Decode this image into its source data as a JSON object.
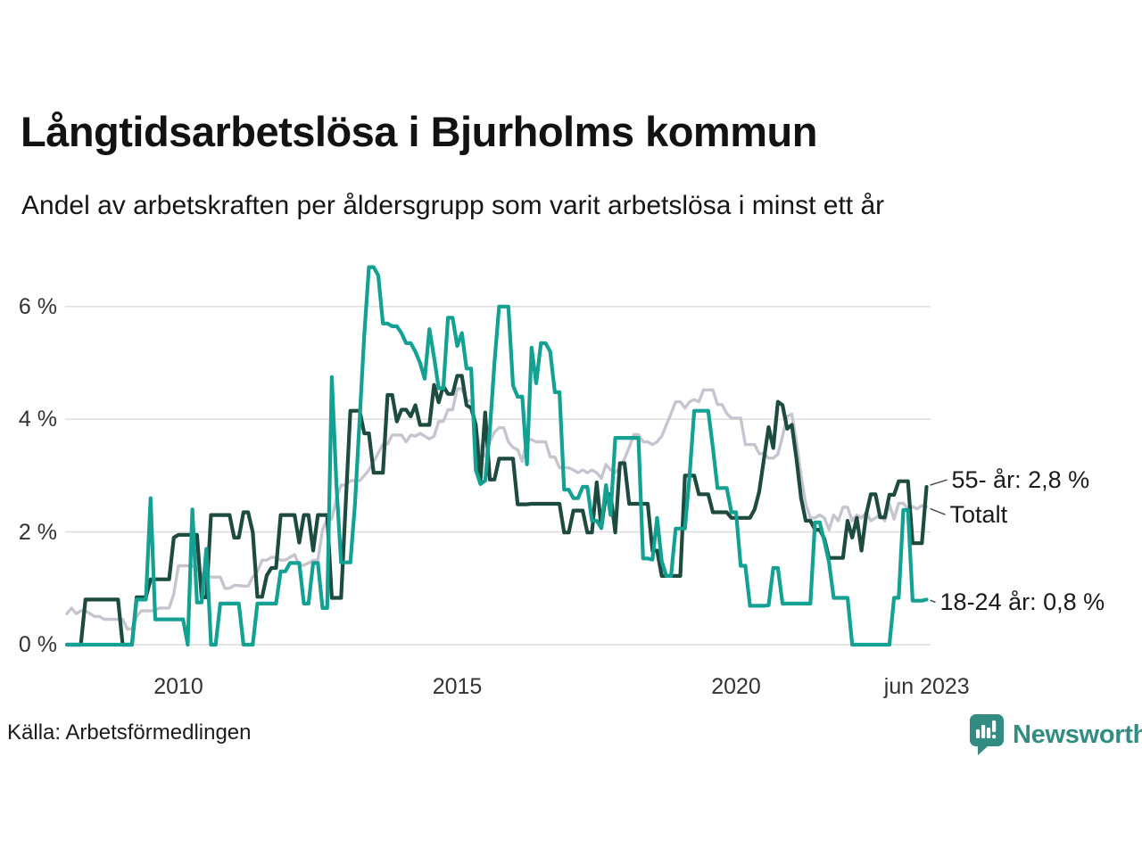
{
  "header": {
    "title": "Långtidsarbetslösa i Bjurholms kommun",
    "subtitle": "Andel av arbetskraften per åldersgrupp som varit arbetslösa i minst ett år"
  },
  "chart_data": {
    "type": "line",
    "x_unit": "month",
    "x_start": 2008.0,
    "x_end": 2023.417,
    "grid": "horizontal-only",
    "legend_position": "end-of-line-labels",
    "ylim": [
      0,
      6.9
    ],
    "y_ticks": [
      {
        "value": 0,
        "label": "0 %"
      },
      {
        "value": 2,
        "label": "2 %"
      },
      {
        "value": 4,
        "label": "4 %"
      },
      {
        "value": 6,
        "label": "6 %"
      }
    ],
    "x_ticks": [
      {
        "year": 2010,
        "label": "2010"
      },
      {
        "year": 2015,
        "label": "2015"
      },
      {
        "year": 2020,
        "label": "2020"
      },
      {
        "year": 2023.42,
        "label": "jun 2023"
      }
    ],
    "series": [
      {
        "name": "Totalt",
        "end_label": "Totalt",
        "end_value_text": "",
        "color": "#c6c4cf",
        "values": [
          0.55,
          0.65,
          0.55,
          0.6,
          0.6,
          0.55,
          0.5,
          0.5,
          0.45,
          0.45,
          0.45,
          0.45,
          0.45,
          0.28,
          0.28,
          0.5,
          0.6,
          0.6,
          0.6,
          0.62,
          0.65,
          0.65,
          0.65,
          0.9,
          1.4,
          1.4,
          1.4,
          1.4,
          1.35,
          1.25,
          1.25,
          1.2,
          1.2,
          1.2,
          1.0,
          1.0,
          1.05,
          1.05,
          1.04,
          1.04,
          1.2,
          1.3,
          1.5,
          1.5,
          1.55,
          1.55,
          1.5,
          1.5,
          1.55,
          1.6,
          1.41,
          1.41,
          1.45,
          1.5,
          1.5,
          2.04,
          2.23,
          2.23,
          2.6,
          2.83,
          2.83,
          2.91,
          2.91,
          2.91,
          3.0,
          3.1,
          3.25,
          3.4,
          3.56,
          3.56,
          3.72,
          3.72,
          3.72,
          3.6,
          3.72,
          3.7,
          3.75,
          3.7,
          3.65,
          3.7,
          3.96,
          3.96,
          4.17,
          4.17,
          4.54,
          4.54,
          4.33,
          4.33,
          3.88,
          3.4,
          3.35,
          3.6,
          3.77,
          3.85,
          3.85,
          3.6,
          3.5,
          3.46,
          3.25,
          3.64,
          3.64,
          3.6,
          3.6,
          3.6,
          3.33,
          3.33,
          3.14,
          3.14,
          3.14,
          3.1,
          3.05,
          3.1,
          3.05,
          3.1,
          3.05,
          2.95,
          3.2,
          3.1,
          3.05,
          3.15,
          3.3,
          3.5,
          3.73,
          3.73,
          3.6,
          3.6,
          3.55,
          3.6,
          3.7,
          3.9,
          4.1,
          4.31,
          4.31,
          4.2,
          4.31,
          4.35,
          4.31,
          4.52,
          4.52,
          4.52,
          4.26,
          4.26,
          4.1,
          4.02,
          4.02,
          4.02,
          3.55,
          3.55,
          3.55,
          3.39,
          3.39,
          3.31,
          3.31,
          3.38,
          3.7,
          4.05,
          4.09,
          3.6,
          3.0,
          2.5,
          2.25,
          2.25,
          2.3,
          2.25,
          2.04,
          2.3,
          2.2,
          2.44,
          2.44,
          2.2,
          2.3,
          2.25,
          2.35,
          2.2,
          2.25,
          2.3,
          2.2,
          2.49,
          2.23,
          2.51,
          2.51,
          2.41,
          2.45,
          2.41,
          2.47,
          2.45
        ]
      },
      {
        "name": "55- år",
        "end_label": "55- år: 2,8 %",
        "end_value_text": "2,8 %",
        "color": "#1d4b3f",
        "values": [
          0,
          0,
          0,
          0,
          0.8,
          0.8,
          0.8,
          0.8,
          0.8,
          0.8,
          0.8,
          0.8,
          0,
          0,
          0,
          0.84,
          0.84,
          0.84,
          1.16,
          1.16,
          1.16,
          1.16,
          1.16,
          1.9,
          1.95,
          1.95,
          1.95,
          1.95,
          1.95,
          0.84,
          0.84,
          2.3,
          2.3,
          2.3,
          2.3,
          2.3,
          1.9,
          1.9,
          2.35,
          2.35,
          2.0,
          0.85,
          0.85,
          1.23,
          1.36,
          1.36,
          2.3,
          2.3,
          2.3,
          2.3,
          1.81,
          2.3,
          2.3,
          1.67,
          2.3,
          2.3,
          2.3,
          0.83,
          0.83,
          0.83,
          2.5,
          4.15,
          4.15,
          4.15,
          3.75,
          3.75,
          3.05,
          3.05,
          3.05,
          4.43,
          4.43,
          3.96,
          4.17,
          4.17,
          4.05,
          4.25,
          3.9,
          3.9,
          3.9,
          4.61,
          4.3,
          4.59,
          4.45,
          4.45,
          4.77,
          4.77,
          4.25,
          4.2,
          3.9,
          2.91,
          4.12,
          2.93,
          2.93,
          3.3,
          3.3,
          3.3,
          3.3,
          2.49,
          2.49,
          2.49,
          2.5,
          2.5,
          2.5,
          2.5,
          2.5,
          2.5,
          2.5,
          1.99,
          1.99,
          2.38,
          2.38,
          2.38,
          1.99,
          1.99,
          2.88,
          2.07,
          2.67,
          2.67,
          1.99,
          3.22,
          3.22,
          2.5,
          2.5,
          2.5,
          2.5,
          2.5,
          1.67,
          1.67,
          1.22,
          1.22,
          1.22,
          1.22,
          1.22,
          3.0,
          3.0,
          3.0,
          2.67,
          2.67,
          2.67,
          2.35,
          2.35,
          2.35,
          2.35,
          2.25,
          2.25,
          2.25,
          2.25,
          2.25,
          2.4,
          2.72,
          3.3,
          3.86,
          3.49,
          4.31,
          4.25,
          3.83,
          3.9,
          3.3,
          2.6,
          2.2,
          2.2,
          2.04,
          2.04,
          1.88,
          1.54,
          1.54,
          1.54,
          1.54,
          2.2,
          1.9,
          2.25,
          1.67,
          2.3,
          2.67,
          2.67,
          2.26,
          2.26,
          2.66,
          2.66,
          2.9,
          2.9,
          2.9,
          1.8,
          1.8,
          1.8,
          2.8
        ]
      },
      {
        "name": "18-24 år",
        "end_label": "18-24 år: 0,8 %",
        "end_value_text": "0,8 %",
        "color": "#12a192",
        "values": [
          0,
          0,
          0,
          0,
          0,
          0,
          0,
          0,
          0,
          0,
          0,
          0,
          0,
          0,
          0,
          0.8,
          0.8,
          0.8,
          2.6,
          0.45,
          0.45,
          0.45,
          0.45,
          0.45,
          0.45,
          0.45,
          0,
          2.4,
          0.75,
          0.75,
          1.7,
          0,
          0,
          0.73,
          0.73,
          0.73,
          0.73,
          0.73,
          0,
          0,
          0,
          0.73,
          0.73,
          0.73,
          0.73,
          0.73,
          1.3,
          1.3,
          1.45,
          1.45,
          1.45,
          0.73,
          0.73,
          1.45,
          1.45,
          0.65,
          0.65,
          4.75,
          2.83,
          1.46,
          1.46,
          1.46,
          2.5,
          4.0,
          5.5,
          6.7,
          6.7,
          6.55,
          5.7,
          5.7,
          5.65,
          5.65,
          5.53,
          5.35,
          5.35,
          5.2,
          5.0,
          4.72,
          5.6,
          5.1,
          4.55,
          4.55,
          5.8,
          5.8,
          5.3,
          5.53,
          4.9,
          4.9,
          3.1,
          2.85,
          2.91,
          3.8,
          5.0,
          6.0,
          6.0,
          6.0,
          4.6,
          4.4,
          4.4,
          3.2,
          5.27,
          4.64,
          5.35,
          5.35,
          5.2,
          4.48,
          4.48,
          2.75,
          2.75,
          2.6,
          2.6,
          2.8,
          2.8,
          2.2,
          2.2,
          2.07,
          2.83,
          2.3,
          3.67,
          3.67,
          3.67,
          3.67,
          3.67,
          3.67,
          1.53,
          1.53,
          1.51,
          2.25,
          1.48,
          1.22,
          1.22,
          2.06,
          2.06,
          2.06,
          3.0,
          4.15,
          4.15,
          4.15,
          4.15,
          3.5,
          2.78,
          2.78,
          2.78,
          2.35,
          2.35,
          1.4,
          1.4,
          0.69,
          0.69,
          0.69,
          0.69,
          0.7,
          1.36,
          1.36,
          0.73,
          0.73,
          0.73,
          0.73,
          0.73,
          0.73,
          0.73,
          2.17,
          2.17,
          1.83,
          1.46,
          0.83,
          0.83,
          0.83,
          0.83,
          0,
          0,
          0,
          0,
          0,
          0,
          0,
          0,
          0,
          0.83,
          0.83,
          2.39,
          2.39,
          0.78,
          0.78,
          0.78,
          0.8
        ]
      }
    ]
  },
  "source": {
    "label": "Källa: Arbetsförmedlingen"
  },
  "branding": {
    "name": "Newsworthy",
    "color": "#338c81"
  }
}
